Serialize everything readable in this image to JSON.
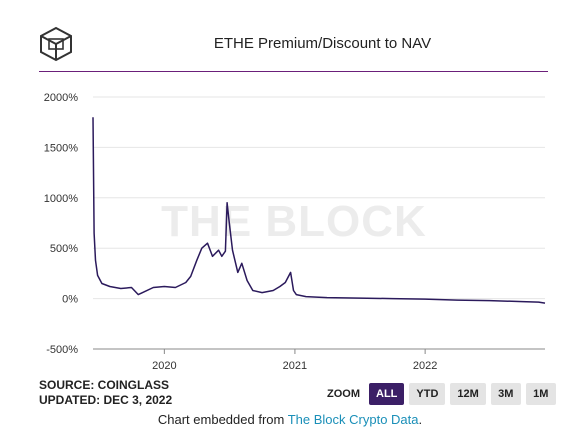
{
  "header": {
    "title": "ETHE Premium/Discount to NAV"
  },
  "watermark": "THE BLOCK",
  "footer": {
    "source": "SOURCE: COINGLASS",
    "updated": "UPDATED: DEC 3, 2022",
    "embed_prefix": "Chart embedded from ",
    "embed_link": "The Block Crypto Data",
    "embed_suffix": "."
  },
  "zoom": {
    "label": "ZOOM",
    "options": [
      "ALL",
      "YTD",
      "12M",
      "3M",
      "1M"
    ],
    "selected": "ALL"
  },
  "colors": {
    "line": "#2b1a5c",
    "title_rule": "#6b1f7a",
    "active_zoom": "#3b1f66",
    "link": "#1a8fb8"
  },
  "chart_data": {
    "type": "line",
    "title": "ETHE Premium/Discount to NAV",
    "xlabel": "",
    "ylabel": "",
    "ylim": [
      -500,
      2000
    ],
    "yticks": [
      -500,
      0,
      500,
      1000,
      1500,
      2000
    ],
    "ytick_labels": [
      "-500%",
      "0%",
      "500%",
      "1000%",
      "1500%",
      "2000%"
    ],
    "xticks": [
      "2020-01-01",
      "2021-01-01",
      "2022-01-01"
    ],
    "xtick_labels": [
      "2020",
      "2021",
      "2022"
    ],
    "xlim": [
      "2019-06-15",
      "2022-12-03"
    ],
    "grid": true,
    "series": [
      {
        "points": [
          [
            "2019-06-15",
            1800
          ],
          [
            "2019-06-18",
            650
          ],
          [
            "2019-06-22",
            380
          ],
          [
            "2019-06-28",
            230
          ],
          [
            "2019-07-10",
            150
          ],
          [
            "2019-08-01",
            120
          ],
          [
            "2019-09-01",
            100
          ],
          [
            "2019-10-01",
            110
          ],
          [
            "2019-10-20",
            40
          ],
          [
            "2019-11-01",
            60
          ],
          [
            "2019-12-01",
            110
          ],
          [
            "2020-01-01",
            120
          ],
          [
            "2020-02-01",
            110
          ],
          [
            "2020-03-01",
            160
          ],
          [
            "2020-03-15",
            220
          ],
          [
            "2020-04-01",
            380
          ],
          [
            "2020-04-15",
            500
          ],
          [
            "2020-05-01",
            550
          ],
          [
            "2020-05-15",
            420
          ],
          [
            "2020-06-01",
            480
          ],
          [
            "2020-06-10",
            420
          ],
          [
            "2020-06-20",
            470
          ],
          [
            "2020-06-25",
            950
          ],
          [
            "2020-07-01",
            750
          ],
          [
            "2020-07-10",
            480
          ],
          [
            "2020-07-25",
            260
          ],
          [
            "2020-08-05",
            350
          ],
          [
            "2020-08-20",
            180
          ],
          [
            "2020-09-05",
            80
          ],
          [
            "2020-10-01",
            60
          ],
          [
            "2020-11-01",
            80
          ],
          [
            "2020-11-20",
            120
          ],
          [
            "2020-12-05",
            160
          ],
          [
            "2020-12-20",
            260
          ],
          [
            "2020-12-28",
            80
          ],
          [
            "2021-01-05",
            40
          ],
          [
            "2021-02-01",
            20
          ],
          [
            "2021-04-01",
            10
          ],
          [
            "2021-07-01",
            5
          ],
          [
            "2021-10-01",
            0
          ],
          [
            "2022-01-01",
            -5
          ],
          [
            "2022-04-01",
            -15
          ],
          [
            "2022-07-01",
            -20
          ],
          [
            "2022-10-01",
            -30
          ],
          [
            "2022-11-15",
            -35
          ],
          [
            "2022-12-03",
            -45
          ]
        ]
      }
    ]
  }
}
